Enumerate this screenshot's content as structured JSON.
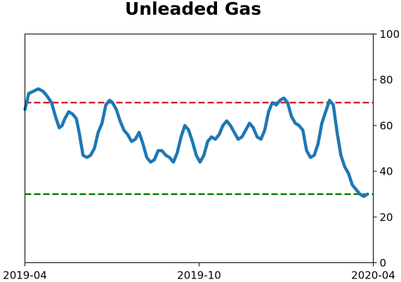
{
  "chart_data": {
    "type": "line",
    "title": "Unleaded Gas",
    "xlabel": "",
    "ylabel": "",
    "x_ticks": [
      "2019-04",
      "2019-10",
      "2020-04"
    ],
    "y_ticks": [
      "0",
      "20",
      "40",
      "60",
      "80",
      "100"
    ],
    "ylim": [
      0,
      100
    ],
    "y_axis_side": "right",
    "grid": false,
    "reference_lines": [
      {
        "value": 70,
        "color": "#d62728",
        "style": "dashed"
      },
      {
        "value": 30,
        "color": "#008000",
        "style": "dashed"
      }
    ],
    "series": [
      {
        "color": "#1f77b4",
        "x": [
          "2019-04-01",
          "2019-04-05",
          "2019-04-10",
          "2019-04-15",
          "2019-04-20",
          "2019-04-24",
          "2019-04-29",
          "2019-05-03",
          "2019-05-07",
          "2019-05-10",
          "2019-05-13",
          "2019-05-17",
          "2019-05-21",
          "2019-05-25",
          "2019-05-28",
          "2019-06-01",
          "2019-06-05",
          "2019-06-09",
          "2019-06-13",
          "2019-06-17",
          "2019-06-21",
          "2019-06-25",
          "2019-06-29",
          "2019-07-02",
          "2019-07-06",
          "2019-07-10",
          "2019-07-14",
          "2019-07-18",
          "2019-07-22",
          "2019-07-26",
          "2019-07-30",
          "2019-08-03",
          "2019-08-07",
          "2019-08-11",
          "2019-08-15",
          "2019-08-19",
          "2019-08-23",
          "2019-08-27",
          "2019-08-31",
          "2019-09-04",
          "2019-09-08",
          "2019-09-12",
          "2019-09-16",
          "2019-09-20",
          "2019-09-24",
          "2019-09-28",
          "2019-10-02",
          "2019-10-06",
          "2019-10-10",
          "2019-10-14",
          "2019-10-18",
          "2019-10-22",
          "2019-10-26",
          "2019-10-30",
          "2019-11-03",
          "2019-11-07",
          "2019-11-11",
          "2019-11-15",
          "2019-11-19",
          "2019-11-23",
          "2019-11-27",
          "2019-12-01",
          "2019-12-05",
          "2019-12-09",
          "2019-12-13",
          "2019-12-17",
          "2019-12-21",
          "2019-12-25",
          "2019-12-29",
          "2020-01-02",
          "2020-01-06",
          "2020-01-10",
          "2020-01-14",
          "2020-01-18",
          "2020-01-22",
          "2020-01-26",
          "2020-01-30",
          "2020-02-03",
          "2020-02-07",
          "2020-02-11",
          "2020-02-15",
          "2020-02-19",
          "2020-02-23",
          "2020-02-27",
          "2020-03-02",
          "2020-03-06",
          "2020-03-10",
          "2020-03-14",
          "2020-03-18",
          "2020-03-22",
          "2020-03-26"
        ],
        "values": [
          67,
          74,
          75,
          76,
          75,
          73,
          70,
          64,
          59,
          60,
          63,
          66,
          65,
          63,
          57,
          47,
          46,
          47,
          50,
          57,
          61,
          69,
          71,
          70,
          67,
          62,
          58,
          56,
          53,
          54,
          57,
          52,
          46,
          44,
          45,
          49,
          49,
          47,
          46,
          44,
          48,
          55,
          60,
          58,
          53,
          47,
          44,
          47,
          53,
          55,
          54,
          56,
          60,
          62,
          60,
          57,
          54,
          55,
          58,
          61,
          59,
          55,
          54,
          58,
          66,
          70,
          69,
          71,
          72,
          70,
          64,
          61,
          60,
          58,
          49,
          46,
          47,
          52,
          61,
          66,
          71,
          69,
          57,
          47,
          42,
          39,
          34,
          32,
          30,
          29,
          30
        ]
      }
    ]
  }
}
